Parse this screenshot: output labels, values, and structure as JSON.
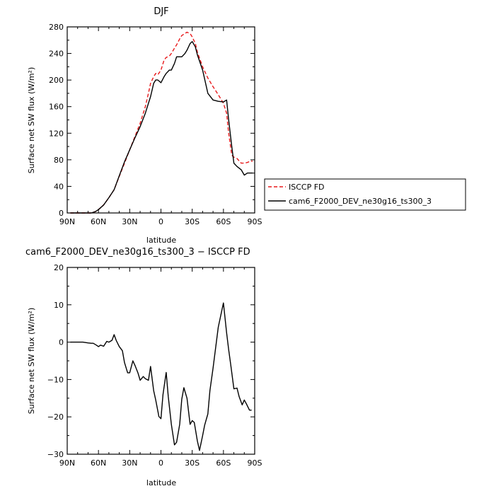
{
  "chart_data": [
    {
      "type": "line",
      "title": "DJF",
      "xlabel": "latitude",
      "ylabel": "Surface net SW flux (W/m²)",
      "xticks": [
        90,
        60,
        30,
        0,
        -30,
        -60,
        -90
      ],
      "xtick_labels": [
        "90N",
        "60N",
        "30N",
        "0",
        "30S",
        "60S",
        "90S"
      ],
      "xlim": [
        90,
        -90
      ],
      "ylim": [
        0,
        280
      ],
      "yticks": [
        0,
        40,
        80,
        120,
        160,
        200,
        240,
        280
      ],
      "ytick_labels": [
        "0",
        "40",
        "80",
        "120",
        "160",
        "200",
        "240",
        "280"
      ],
      "legend_position": "right",
      "series": [
        {
          "name": "ISCCP FD",
          "color": "#e8191b",
          "dash": "dashed",
          "x": [
            87,
            80,
            70,
            67,
            63,
            60,
            55,
            50,
            45,
            40,
            35,
            30,
            25,
            20,
            15,
            12,
            10,
            7,
            5,
            3,
            0,
            -3,
            -5,
            -8,
            -10,
            -13,
            -15,
            -18,
            -20,
            -23,
            -25,
            -28,
            -30,
            -33,
            -35,
            -40,
            -45,
            -50,
            -55,
            -60,
            -63,
            -65,
            -68,
            -70,
            -73,
            -77,
            -80,
            -83,
            -86,
            -88
          ],
          "y": [
            0,
            0,
            0,
            0,
            2,
            5,
            12,
            23,
            35,
            55,
            75,
            95,
            115,
            135,
            160,
            180,
            195,
            205,
            210,
            208,
            215,
            230,
            234,
            236,
            240,
            248,
            253,
            262,
            267,
            270,
            272,
            270,
            265,
            255,
            242,
            220,
            203,
            190,
            178,
            165,
            150,
            120,
            87,
            84,
            82,
            75,
            75,
            76,
            78,
            78
          ]
        },
        {
          "name": "cam6_F2000_DEV_ne30g16_ts300_3",
          "color": "#000000",
          "dash": "solid",
          "x": [
            87,
            80,
            70,
            67,
            63,
            60,
            55,
            50,
            45,
            40,
            35,
            30,
            25,
            20,
            15,
            12,
            10,
            7,
            5,
            3,
            0,
            -3,
            -5,
            -8,
            -10,
            -13,
            -15,
            -18,
            -20,
            -23,
            -25,
            -28,
            -30,
            -33,
            -35,
            -40,
            -45,
            -50,
            -55,
            -60,
            -63,
            -65,
            -68,
            -70,
            -73,
            -77,
            -80,
            -83,
            -86,
            -88
          ],
          "y": [
            0,
            0,
            0,
            0,
            2,
            5,
            12,
            23,
            35,
            56,
            77,
            95,
            113,
            130,
            150,
            165,
            175,
            195,
            200,
            200,
            196,
            205,
            210,
            215,
            215,
            225,
            235,
            235,
            235,
            240,
            245,
            255,
            258,
            250,
            238,
            215,
            180,
            170,
            168,
            167,
            170,
            140,
            100,
            75,
            70,
            65,
            57,
            60,
            60,
            60
          ]
        }
      ]
    },
    {
      "type": "line",
      "title": "cam6_F2000_DEV_ne30g16_ts300_3 − ISCCP FD",
      "xlabel": "latitude",
      "ylabel": "Surface net SW flux (W/m²)",
      "xticks": [
        90,
        60,
        30,
        0,
        -30,
        -60,
        -90
      ],
      "xtick_labels": [
        "90N",
        "60N",
        "30N",
        "0",
        "30S",
        "60S",
        "90S"
      ],
      "xlim": [
        90,
        -90
      ],
      "ylim": [
        -30,
        20
      ],
      "yticks": [
        -30,
        -20,
        -10,
        0,
        10,
        20
      ],
      "ytick_labels": [
        "−30",
        "−20",
        "−10",
        "0",
        "10",
        "20"
      ],
      "series": [
        {
          "color": "#000000",
          "dash": "solid",
          "x": [
            87,
            80,
            75,
            70,
            67,
            65,
            62,
            60,
            58,
            55,
            52,
            50,
            47,
            45,
            43,
            40,
            37,
            35,
            32,
            30,
            27,
            25,
            22,
            20,
            17,
            15,
            12,
            10,
            7,
            5,
            2,
            0,
            -2,
            -5,
            -7,
            -10,
            -13,
            -15,
            -18,
            -20,
            -22,
            -25,
            -28,
            -30,
            -32,
            -35,
            -37,
            -40,
            -42,
            -45,
            -47,
            -50,
            -55,
            -60,
            -63,
            -65,
            -67,
            -70,
            -73,
            -75,
            -78,
            -80,
            -82,
            -85,
            -87
          ],
          "y": [
            0,
            0,
            0,
            -0.2,
            -0.3,
            -0.3,
            -0.8,
            -1.2,
            -0.8,
            -1.1,
            0.2,
            0,
            0.5,
            2,
            0.5,
            -1.2,
            -2.3,
            -5.5,
            -8.2,
            -8.2,
            -5,
            -6.2,
            -8.3,
            -10.2,
            -9.2,
            -9.8,
            -10.2,
            -6.5,
            -13,
            -15.5,
            -19.9,
            -20.5,
            -14,
            -8.1,
            -14.5,
            -22,
            -27.5,
            -26.8,
            -22,
            -15.3,
            -12.2,
            -15,
            -22,
            -21,
            -21.5,
            -26.5,
            -29,
            -25,
            -22.2,
            -19.2,
            -13,
            -7,
            4,
            10.5,
            2.5,
            -2,
            -6,
            -12.5,
            -12.3,
            -14.5,
            -16.8,
            -15.5,
            -16.5,
            -18.2,
            -18.2
          ]
        }
      ]
    }
  ]
}
